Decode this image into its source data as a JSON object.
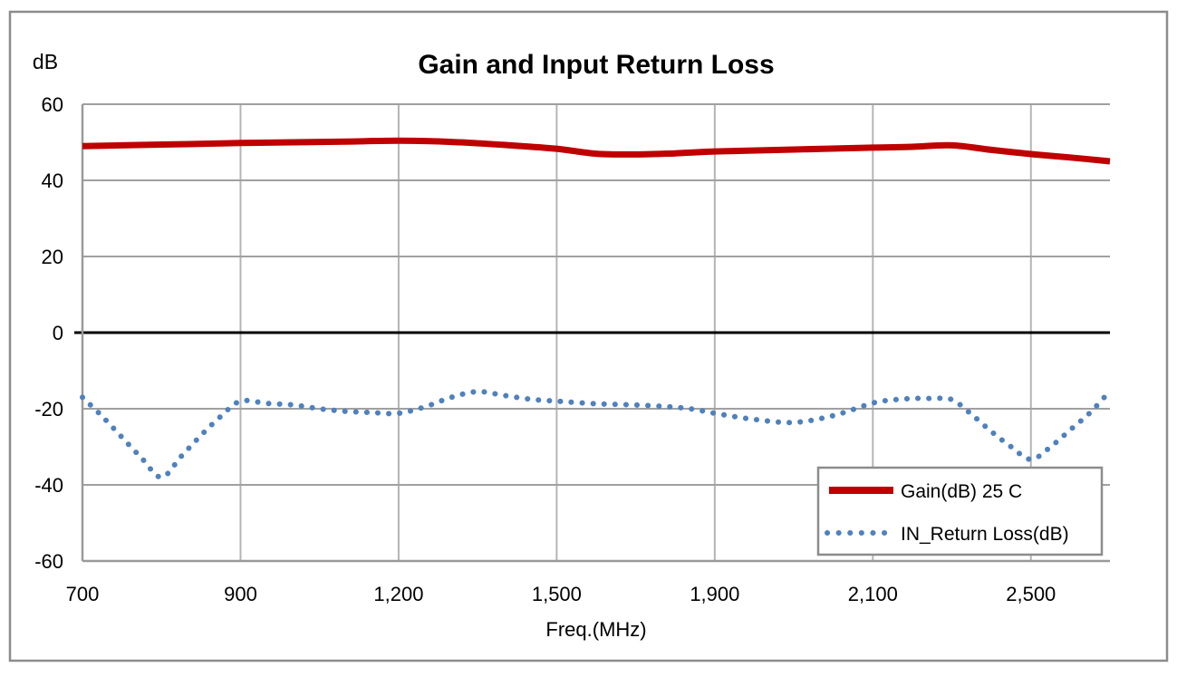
{
  "window": {
    "background": "#ffffff",
    "border_color": "#8c8c8c"
  },
  "chart_data": {
    "type": "line",
    "title": "Gain and Input Return Loss",
    "xlabel": "Freq.(MHz)",
    "ylabel": "dB",
    "grid": true,
    "x_axis": {
      "scale": "category",
      "tick_labels": [
        "700",
        "900",
        "1,200",
        "1,500",
        "1,900",
        "2,100",
        "2,500"
      ],
      "tick_values": [
        700,
        900,
        1200,
        1500,
        1900,
        2100,
        2500
      ],
      "axis_end_value": 2700
    },
    "y_axis": {
      "tick_labels": [
        "60",
        "40",
        "20",
        "0",
        "-20",
        "-40",
        "-60"
      ],
      "tick_values": [
        60,
        40,
        20,
        0,
        -20,
        -40,
        -60
      ],
      "min": -60,
      "max": 60,
      "zero_line_color": "#000000"
    },
    "colors": {
      "h_gridline": "#a0a0a0",
      "v_gridline": "#b5b5b5",
      "axis_line": "#9a9a9a",
      "legend_border": "#8c8c8c"
    },
    "legend": {
      "position": "bottom-right",
      "border": true
    },
    "series": [
      {
        "name": "Gain(dB) 25 C",
        "color": "#bf0000",
        "style": "solid",
        "width": 7,
        "points": [
          [
            700,
            49.0
          ],
          [
            800,
            49.4
          ],
          [
            900,
            49.8
          ],
          [
            1000,
            50.0
          ],
          [
            1100,
            50.2
          ],
          [
            1200,
            50.4
          ],
          [
            1300,
            50.1
          ],
          [
            1400,
            49.3
          ],
          [
            1500,
            48.3
          ],
          [
            1600,
            47.0
          ],
          [
            1700,
            46.8
          ],
          [
            1800,
            47.1
          ],
          [
            1900,
            47.6
          ],
          [
            2000,
            48.1
          ],
          [
            2100,
            48.6
          ],
          [
            2200,
            48.8
          ],
          [
            2300,
            49.2
          ],
          [
            2400,
            48.0
          ],
          [
            2500,
            46.9
          ],
          [
            2600,
            46.0
          ],
          [
            2700,
            45.0
          ]
        ]
      },
      {
        "name": "IN_Return Loss(dB)",
        "color": "#4f81bd",
        "style": "dotted",
        "width": 6,
        "points": [
          [
            700,
            -17
          ],
          [
            725,
            -22
          ],
          [
            750,
            -27.5
          ],
          [
            775,
            -33
          ],
          [
            800,
            -38
          ],
          [
            825,
            -32.5
          ],
          [
            850,
            -27
          ],
          [
            875,
            -22
          ],
          [
            900,
            -18
          ],
          [
            950,
            -18.6
          ],
          [
            1000,
            -19
          ],
          [
            1050,
            -20
          ],
          [
            1100,
            -20.7
          ],
          [
            1150,
            -21
          ],
          [
            1200,
            -21.2
          ],
          [
            1250,
            -19.5
          ],
          [
            1300,
            -17
          ],
          [
            1350,
            -15.5
          ],
          [
            1400,
            -16.5
          ],
          [
            1450,
            -17.5
          ],
          [
            1500,
            -18
          ],
          [
            1600,
            -18.7
          ],
          [
            1700,
            -19
          ],
          [
            1800,
            -19.6
          ],
          [
            1850,
            -20.2
          ],
          [
            1900,
            -21.2
          ],
          [
            1950,
            -22.8
          ],
          [
            2000,
            -23.6
          ],
          [
            2050,
            -21.8
          ],
          [
            2100,
            -18.5
          ],
          [
            2150,
            -17.7
          ],
          [
            2200,
            -17.3
          ],
          [
            2250,
            -17.3
          ],
          [
            2300,
            -17.6
          ],
          [
            2350,
            -21.5
          ],
          [
            2400,
            -26
          ],
          [
            2450,
            -30
          ],
          [
            2500,
            -33.3
          ],
          [
            2550,
            -30
          ],
          [
            2600,
            -25.5
          ],
          [
            2650,
            -21
          ],
          [
            2700,
            -15.3
          ]
        ]
      }
    ]
  }
}
